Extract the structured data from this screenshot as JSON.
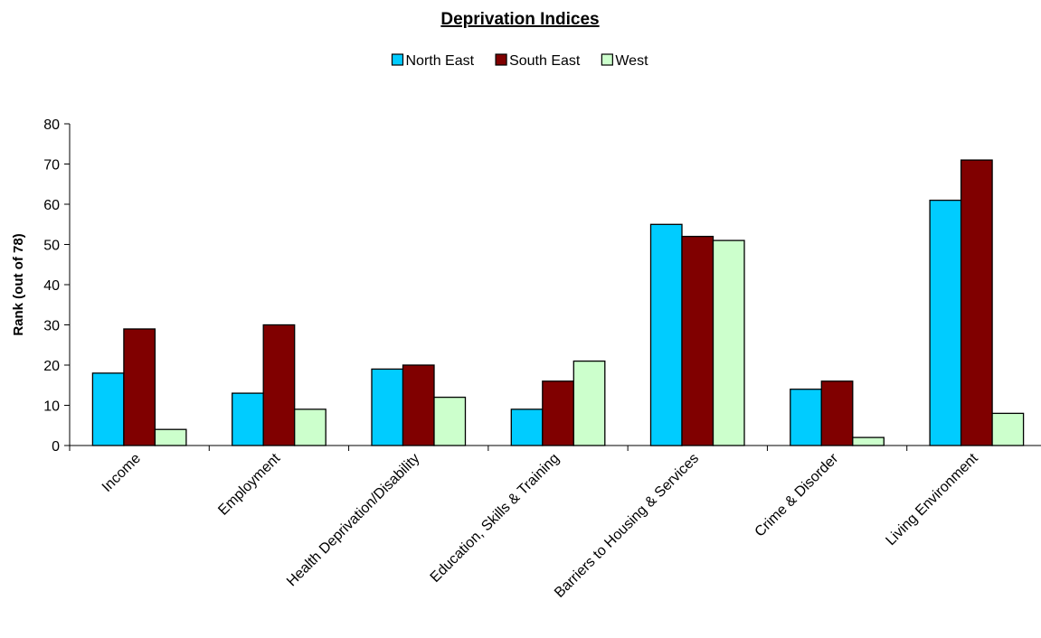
{
  "chart_data": {
    "type": "bar",
    "title": "Deprivation Indices",
    "xlabel": "",
    "ylabel": "Rank (out of 78)",
    "ylim": [
      0,
      80
    ],
    "yticks": [
      0,
      10,
      20,
      30,
      40,
      50,
      60,
      70,
      80
    ],
    "grid": false,
    "legend_position": "top",
    "categories": [
      "Income",
      "Employment",
      "Health Deprivation/Disability",
      "Education, Skills & Training",
      "Barriers to Housing & Services",
      "Crime & Disorder",
      "Living Environment"
    ],
    "series": [
      {
        "name": "North East",
        "color": "#00ccff",
        "values": [
          18,
          13,
          19,
          9,
          55,
          14,
          61
        ]
      },
      {
        "name": "South East",
        "color": "#800000",
        "values": [
          29,
          30,
          20,
          16,
          52,
          16,
          71
        ]
      },
      {
        "name": "West",
        "color": "#ccffcc",
        "values": [
          4,
          9,
          12,
          21,
          51,
          2,
          8
        ]
      }
    ]
  }
}
